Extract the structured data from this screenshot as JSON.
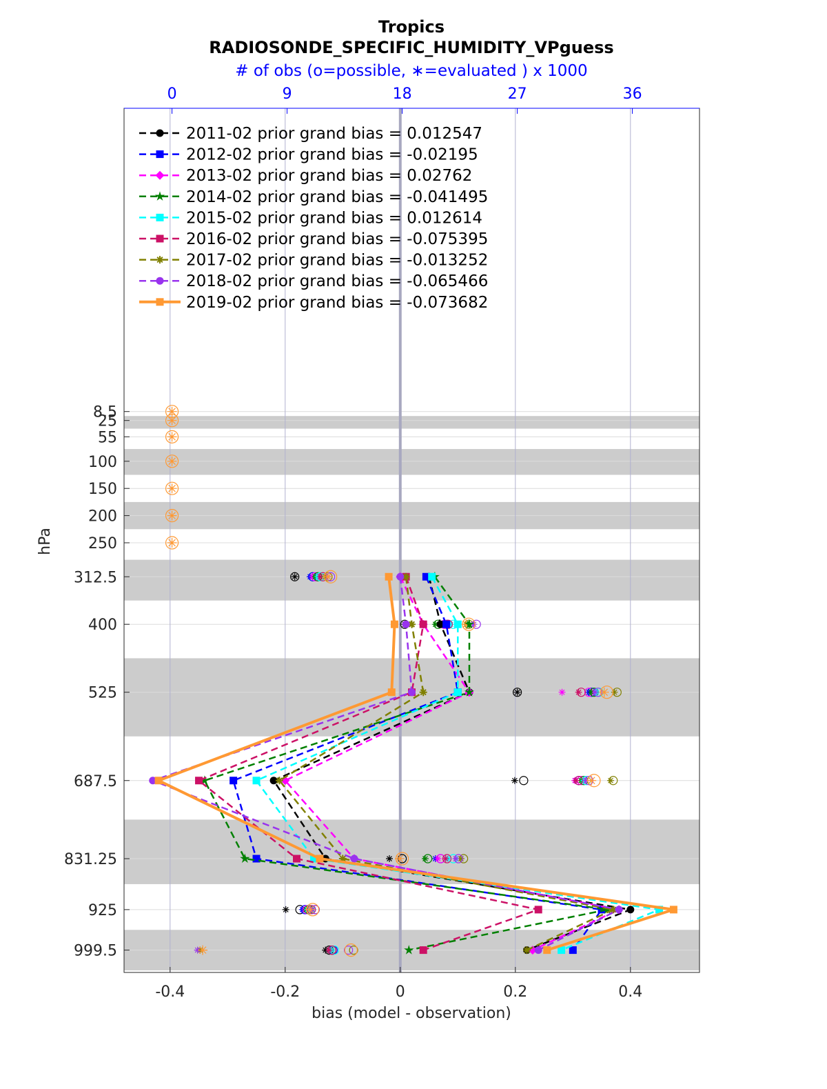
{
  "chart_data": {
    "type": "line",
    "title": "Tropics",
    "subtitle": "RADIOSONDE_SPECIFIC_HUMIDITY_VPguess",
    "top_axis_label": "# of obs (o=possible, ∗=evaluated ) x 1000",
    "xlabel": "bias (model - observation)",
    "ylabel": "hPa",
    "xlim": [
      -0.48,
      0.52
    ],
    "x_ticks": [
      -0.4,
      -0.2,
      0,
      0.2,
      0.4
    ],
    "x_tick_labels": [
      "-0.4",
      "-0.2",
      "0",
      "0.2",
      "0.4"
    ],
    "top_xlim": [
      -3.75,
      41.25
    ],
    "top_ticks": [
      0,
      9,
      18,
      27,
      36
    ],
    "top_tick_labels": [
      "0",
      "9",
      "18",
      "27",
      "36"
    ],
    "levels": [
      8.5,
      25,
      55,
      100,
      150,
      200,
      250,
      312.5,
      400,
      525,
      687.5,
      831.25,
      925,
      999.5
    ],
    "level_labels": [
      "8.5",
      "25",
      "55",
      "100",
      "150",
      "200",
      "250",
      "312.5",
      "400",
      "525",
      "687.5",
      "831.25",
      "925",
      "999.5"
    ],
    "grid": true,
    "legend_position": "top-left",
    "series": [
      {
        "name": "2011-02 prior grand bias = 0.012547",
        "color": "#000000",
        "marker": "circle",
        "line": "dashed",
        "bias_levels": [
          312.5,
          400,
          525,
          687.5,
          831.25,
          925,
          999.5
        ],
        "bias": [
          0.05,
          0.07,
          0.12,
          -0.22,
          -0.13,
          0.4,
          0.22
        ],
        "obs_possible": [
          null,
          null,
          null,
          null,
          null,
          null,
          null,
          9.6,
          18.2,
          27.0,
          27.5,
          18.0,
          10.0,
          12.3
        ],
        "obs_evaluated": [
          null,
          null,
          null,
          null,
          null,
          null,
          null,
          9.6,
          18.2,
          27.0,
          26.8,
          17.0,
          8.9,
          12.0
        ]
      },
      {
        "name": "2012-02 prior grand bias = -0.02195",
        "color": "#0000ff",
        "marker": "square",
        "line": "dashed",
        "bias_levels": [
          312.5,
          400,
          525,
          687.5,
          831.25,
          925,
          999.5
        ],
        "bias": [
          0.045,
          0.08,
          0.1,
          -0.29,
          -0.25,
          0.35,
          0.3
        ],
        "obs_possible": [
          null,
          null,
          null,
          null,
          null,
          null,
          null,
          11.0,
          21.5,
          32.8,
          31.8,
          21.0,
          10.4,
          12.6
        ],
        "obs_evaluated": [
          null,
          null,
          null,
          null,
          null,
          null,
          null,
          10.8,
          21.3,
          32.6,
          31.6,
          20.6,
          10.2,
          12.3
        ]
      },
      {
        "name": "2013-02 prior grand bias = 0.02762",
        "color": "#ff00ff",
        "marker": "diamond",
        "line": "dashed",
        "bias_levels": [
          312.5,
          400,
          525,
          687.5,
          831.25,
          925,
          999.5
        ],
        "bias": [
          0.0,
          0.04,
          0.12,
          -0.2,
          -0.08,
          0.38,
          0.23
        ],
        "obs_possible": [
          null,
          null,
          null,
          null,
          null,
          null,
          null,
          11.2,
          21.3,
          32.6,
          32.0,
          21.0,
          10.6,
          12.5
        ],
        "obs_evaluated": [
          null,
          null,
          null,
          null,
          null,
          null,
          null,
          11.0,
          21.0,
          30.5,
          31.5,
          20.8,
          10.4,
          12.3
        ]
      },
      {
        "name": "2014-02 prior grand bias = -0.041495",
        "color": "#008000",
        "marker": "star",
        "line": "dashed",
        "bias_levels": [
          312.5,
          400,
          525,
          687.5,
          831.25,
          925,
          999.5
        ],
        "bias": [
          0.06,
          0.12,
          0.12,
          -0.34,
          -0.27,
          0.36,
          0.015
        ],
        "obs_possible": [
          null,
          null,
          null,
          null,
          null,
          null,
          null,
          11.4,
          20.8,
          33.0,
          32.2,
          20.0,
          10.7,
          12.5
        ],
        "obs_evaluated": [
          null,
          null,
          null,
          null,
          null,
          null,
          null,
          11.2,
          20.6,
          32.8,
          32.0,
          19.8,
          10.5,
          12.3
        ]
      },
      {
        "name": "2015-02 prior grand bias = 0.012614",
        "color": "#00ffff",
        "marker": "square",
        "line": "dashed",
        "bias_levels": [
          312.5,
          400,
          525,
          687.5,
          831.25,
          925,
          999.5
        ],
        "bias": [
          0.055,
          0.1,
          0.1,
          -0.25,
          -0.15,
          0.45,
          0.28
        ],
        "obs_possible": [
          null,
          null,
          null,
          null,
          null,
          null,
          null,
          11.6,
          22.0,
          33.4,
          32.4,
          22.0,
          10.8,
          12.7
        ],
        "obs_evaluated": [
          null,
          null,
          null,
          null,
          null,
          null,
          null,
          11.4,
          21.8,
          33.2,
          32.2,
          21.6,
          10.6,
          12.5
        ]
      },
      {
        "name": "2016-02 prior grand bias = -0.075395",
        "color": "#cc1166",
        "marker": "square",
        "line": "dashed",
        "bias_levels": [
          312.5,
          400,
          525,
          687.5,
          831.25,
          925,
          999.5
        ],
        "bias": [
          0.01,
          0.04,
          0.02,
          -0.35,
          -0.18,
          0.24,
          0.04
        ],
        "obs_possible": [
          null,
          null,
          null,
          null,
          null,
          null,
          null,
          11.8,
          21.6,
          32.0,
          31.8,
          21.5,
          10.9,
          12.5
        ],
        "obs_evaluated": [
          null,
          null,
          null,
          null,
          null,
          null,
          null,
          11.6,
          21.5,
          31.8,
          31.6,
          21.4,
          10.8,
          12.3
        ]
      },
      {
        "name": "2017-02 prior grand bias = -0.013252",
        "color": "#808000",
        "marker": "asterisk",
        "line": "dashed",
        "bias_levels": [
          312.5,
          400,
          525,
          687.5,
          831.25,
          925,
          999.5
        ],
        "bias": [
          0.01,
          0.02,
          0.04,
          -0.21,
          -0.1,
          0.37,
          0.22
        ],
        "obs_possible": [
          null,
          null,
          null,
          null,
          null,
          null,
          null,
          12.2,
          23.2,
          34.8,
          34.5,
          22.8,
          11.2,
          14.2
        ],
        "obs_evaluated": [
          null,
          null,
          null,
          null,
          null,
          null,
          null,
          12.0,
          23.0,
          34.6,
          34.3,
          22.6,
          11.0,
          2.2
        ]
      },
      {
        "name": "2018-02 prior grand bias = -0.065466",
        "color": "#9933ee",
        "marker": "circle",
        "line": "dashed",
        "bias_levels": [
          312.5,
          400,
          525,
          687.5,
          831.25,
          925,
          999.5
        ],
        "bias": [
          0.0,
          0.01,
          0.02,
          -0.43,
          -0.08,
          0.38,
          0.24
        ],
        "obs_possible": [
          null,
          null,
          null,
          null,
          null,
          null,
          null,
          12.4,
          23.8,
          33.3,
          32.6,
          22.4,
          11.2,
          13.8
        ],
        "obs_evaluated": [
          null,
          null,
          null,
          null,
          null,
          null,
          null,
          12.2,
          23.6,
          33.1,
          32.4,
          22.2,
          11.0,
          2.0
        ]
      },
      {
        "name": "2019-02 prior grand bias = -0.073682",
        "color": "#ff9933",
        "marker": "square",
        "line": "solid",
        "bias_levels": [
          312.5,
          400,
          525,
          687.5,
          831.25,
          925,
          999.5
        ],
        "bias": [
          -0.02,
          -0.01,
          -0.015,
          -0.42,
          -0.14,
          0.475,
          0.255
        ],
        "obs_possible": [
          0,
          0,
          0,
          0,
          0,
          0,
          0,
          12.4,
          23.2,
          34.0,
          33.0,
          18.0,
          11.0,
          14.0
        ],
        "obs_evaluated": [
          0,
          0,
          0,
          0,
          0,
          0,
          0,
          12.2,
          23.0,
          33.8,
          32.8,
          17.8,
          10.8,
          2.4
        ]
      }
    ]
  }
}
